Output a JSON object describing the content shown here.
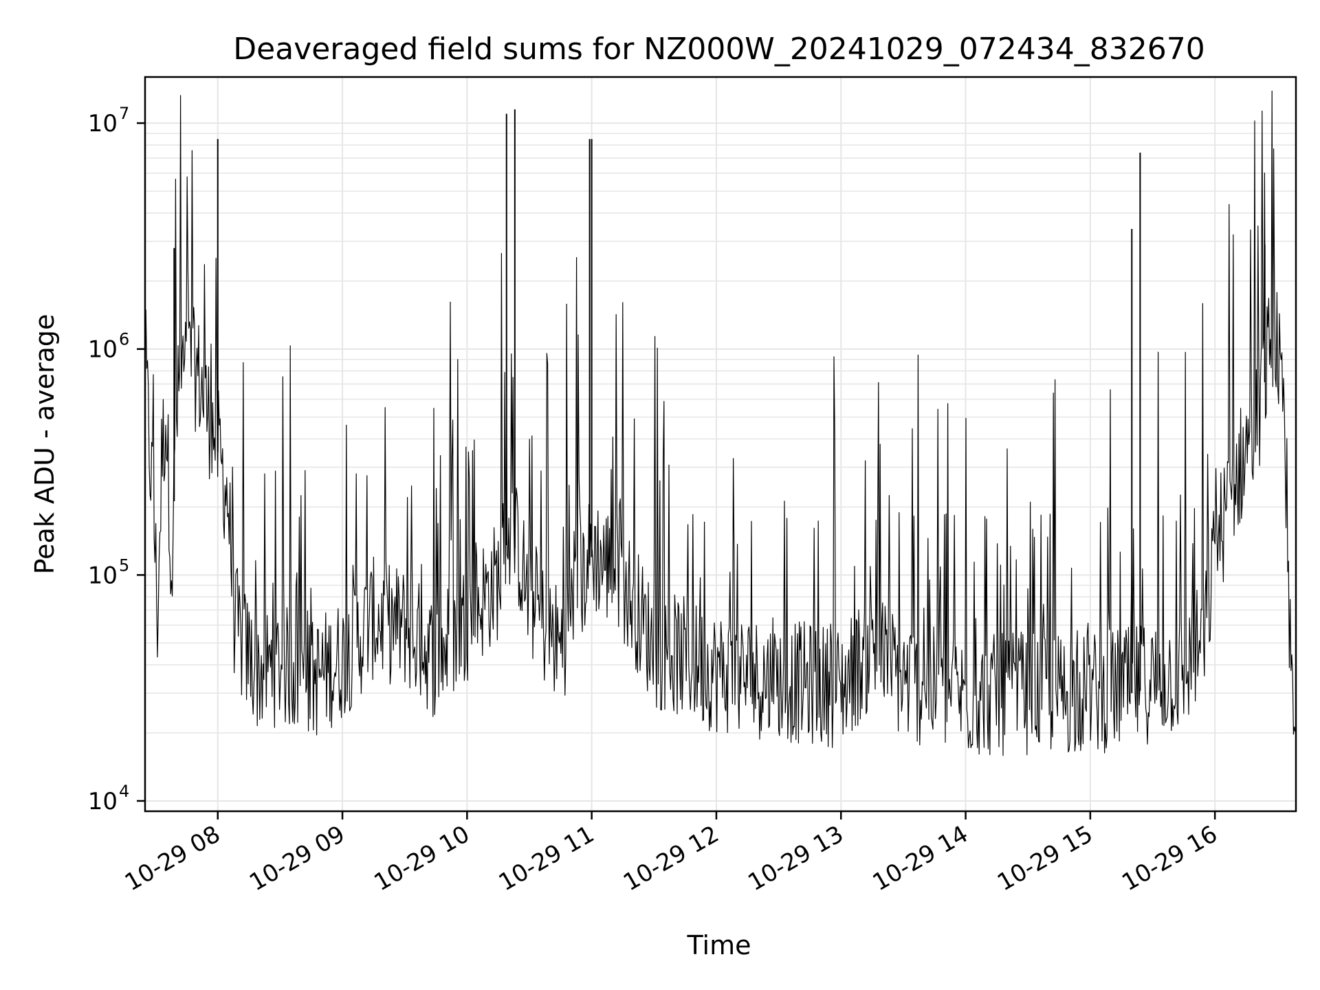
{
  "chart_data": {
    "type": "line",
    "title": "Deaveraged field sums for NZ000W_20241029_072434_832670",
    "xlabel": "Time",
    "ylabel": "Peak ADU - average",
    "yscale": "log",
    "grid": true,
    "line_color": "#000000",
    "grid_color": "#e6e6e6",
    "xlim": [
      "2024-10-29T07:25",
      "2024-10-29T16:39"
    ],
    "ylim": [
      9000,
      16000000
    ],
    "x_ticks": [
      "10-29 08",
      "10-29 09",
      "10-29 10",
      "10-29 11",
      "10-29 12",
      "10-29 13",
      "10-29 14",
      "10-29 15",
      "10-29 16"
    ],
    "x_tick_times": [
      "2024-10-29T08:00",
      "2024-10-29T09:00",
      "2024-10-29T10:00",
      "2024-10-29T11:00",
      "2024-10-29T12:00",
      "2024-10-29T13:00",
      "2024-10-29T14:00",
      "2024-10-29T15:00",
      "2024-10-29T16:00"
    ],
    "y_ticks": [
      {
        "value": 10000,
        "base": "10",
        "exp": "4"
      },
      {
        "value": 100000,
        "base": "10",
        "exp": "5"
      },
      {
        "value": 1000000,
        "base": "10",
        "exp": "6"
      },
      {
        "value": 10000000,
        "base": "10",
        "exp": "7"
      }
    ],
    "series": [
      {
        "x": [
          "2024-10-29T07:25",
          "2024-10-29T07:27",
          "2024-10-29T07:29",
          "2024-10-29T07:31",
          "2024-10-29T07:33",
          "2024-10-29T07:35",
          "2024-10-29T07:38",
          "2024-10-29T07:40",
          "2024-10-29T07:42",
          "2024-10-29T07:45",
          "2024-10-29T07:50",
          "2024-10-29T07:55",
          "2024-10-29T08:00",
          "2024-10-29T08:05",
          "2024-10-29T08:08",
          "2024-10-29T08:12",
          "2024-10-29T08:20",
          "2024-10-29T08:30",
          "2024-10-29T08:45",
          "2024-10-29T09:00",
          "2024-10-29T09:15",
          "2024-10-29T09:30",
          "2024-10-29T09:45",
          "2024-10-29T10:00",
          "2024-10-29T10:15",
          "2024-10-29T10:20",
          "2024-10-29T10:25",
          "2024-10-29T10:30",
          "2024-10-29T10:45",
          "2024-10-29T11:00",
          "2024-10-29T11:15",
          "2024-10-29T11:30",
          "2024-10-29T11:45",
          "2024-10-29T12:00",
          "2024-10-29T12:30",
          "2024-10-29T13:00",
          "2024-10-29T13:15",
          "2024-10-29T13:30",
          "2024-10-29T14:00",
          "2024-10-29T14:30",
          "2024-10-29T15:00",
          "2024-10-29T15:20",
          "2024-10-29T15:45",
          "2024-10-29T15:55",
          "2024-10-29T16:00",
          "2024-10-29T16:10",
          "2024-10-29T16:20",
          "2024-10-29T16:25",
          "2024-10-29T16:28",
          "2024-10-29T16:30",
          "2024-10-29T16:33",
          "2024-10-29T16:35",
          "2024-10-29T16:37",
          "2024-10-29T16:39"
        ],
        "y": [
          900000,
          350000,
          200000,
          60000,
          300000,
          500000,
          100000,
          450000,
          700000,
          800000,
          750000,
          500000,
          350000,
          200000,
          60000,
          45000,
          35000,
          38000,
          32000,
          40000,
          60000,
          55000,
          40000,
          60000,
          90000,
          150000,
          120000,
          70000,
          45000,
          120000,
          90000,
          45000,
          40000,
          35000,
          32000,
          30000,
          45000,
          32000,
          27000,
          28000,
          28000,
          30000,
          35000,
          50000,
          120000,
          250000,
          450000,
          800000,
          1200000,
          1000000,
          400000,
          80000,
          35000,
          30000
        ]
      }
    ],
    "spikes": [
      {
        "x": "2024-10-29T07:39",
        "y": 2800000
      },
      {
        "x": "2024-10-29T08:00",
        "y": 8500000
      },
      {
        "x": "2024-10-29T10:19",
        "y": 11000000
      },
      {
        "x": "2024-10-29T10:23",
        "y": 11500000
      },
      {
        "x": "2024-10-29T10:59",
        "y": 8500000
      },
      {
        "x": "2024-10-29T11:00",
        "y": 8500000
      },
      {
        "x": "2024-10-29T15:20",
        "y": 3400000
      },
      {
        "x": "2024-10-29T15:24",
        "y": 7400000
      },
      {
        "x": "2024-10-29T16:24",
        "y": 2900000
      }
    ]
  }
}
